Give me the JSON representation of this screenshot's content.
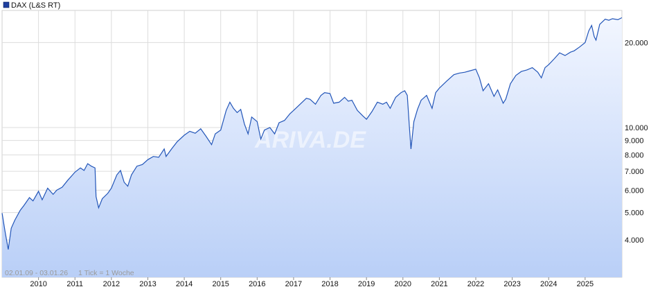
{
  "legend": {
    "label": "DAX (L&S RT)",
    "color": "#1f3f9f"
  },
  "footer": {
    "range": "02.01.09 - 03.01.26",
    "tick": "1 Tick = 1 Woche"
  },
  "watermark": "ARIVA.DE",
  "colors": {
    "line": "#2255b8",
    "fill_top": "#f2f6ff",
    "fill_bottom": "#b9cff7",
    "grid": "#dcdcdc",
    "axis_text": "#111111"
  },
  "chart_data": {
    "type": "area",
    "title": "",
    "xlabel": "",
    "ylabel": "",
    "scale": "log",
    "grid": true,
    "legend": "top-left",
    "xlim": [
      2009.0,
      2026.01
    ],
    "ylim": [
      2950,
      26000
    ],
    "x_ticks": [
      "2010",
      "2011",
      "2012",
      "2013",
      "2014",
      "2015",
      "2016",
      "2017",
      "2018",
      "2019",
      "2020",
      "2021",
      "2022",
      "2023",
      "2024",
      "2025"
    ],
    "y_ticks": [
      {
        "value": 4000,
        "label": "4.000"
      },
      {
        "value": 5000,
        "label": "5.000"
      },
      {
        "value": 6000,
        "label": "6.000"
      },
      {
        "value": 7000,
        "label": "7.000"
      },
      {
        "value": 8000,
        "label": "8.000"
      },
      {
        "value": 9000,
        "label": "9.000"
      },
      {
        "value": 10000,
        "label": "10.000"
      },
      {
        "value": 20000,
        "label": "20.000"
      }
    ],
    "series": [
      {
        "name": "DAX (L&S RT)",
        "points": [
          [
            2009.0,
            4980
          ],
          [
            2009.08,
            4300
          ],
          [
            2009.17,
            3700
          ],
          [
            2009.25,
            4400
          ],
          [
            2009.35,
            4700
          ],
          [
            2009.5,
            5100
          ],
          [
            2009.6,
            5300
          ],
          [
            2009.75,
            5650
          ],
          [
            2009.85,
            5500
          ],
          [
            2010.0,
            5950
          ],
          [
            2010.1,
            5550
          ],
          [
            2010.25,
            6100
          ],
          [
            2010.4,
            5800
          ],
          [
            2010.5,
            6000
          ],
          [
            2010.65,
            6150
          ],
          [
            2010.8,
            6500
          ],
          [
            2011.0,
            6950
          ],
          [
            2011.15,
            7200
          ],
          [
            2011.25,
            7050
          ],
          [
            2011.35,
            7450
          ],
          [
            2011.45,
            7300
          ],
          [
            2011.55,
            7200
          ],
          [
            2011.58,
            5700
          ],
          [
            2011.65,
            5200
          ],
          [
            2011.75,
            5600
          ],
          [
            2011.9,
            5850
          ],
          [
            2012.0,
            6100
          ],
          [
            2012.15,
            6800
          ],
          [
            2012.25,
            7050
          ],
          [
            2012.35,
            6400
          ],
          [
            2012.45,
            6200
          ],
          [
            2012.55,
            6800
          ],
          [
            2012.7,
            7300
          ],
          [
            2012.85,
            7400
          ],
          [
            2013.0,
            7700
          ],
          [
            2013.15,
            7900
          ],
          [
            2013.3,
            7850
          ],
          [
            2013.45,
            8400
          ],
          [
            2013.5,
            7900
          ],
          [
            2013.65,
            8400
          ],
          [
            2013.8,
            8900
          ],
          [
            2014.0,
            9400
          ],
          [
            2014.15,
            9700
          ],
          [
            2014.3,
            9550
          ],
          [
            2014.45,
            9900
          ],
          [
            2014.6,
            9300
          ],
          [
            2014.75,
            8700
          ],
          [
            2014.85,
            9500
          ],
          [
            2015.0,
            9800
          ],
          [
            2015.15,
            11500
          ],
          [
            2015.25,
            12300
          ],
          [
            2015.35,
            11700
          ],
          [
            2015.45,
            11300
          ],
          [
            2015.55,
            11600
          ],
          [
            2015.65,
            10300
          ],
          [
            2015.75,
            9500
          ],
          [
            2015.85,
            10900
          ],
          [
            2016.0,
            10500
          ],
          [
            2016.1,
            9100
          ],
          [
            2016.2,
            9800
          ],
          [
            2016.35,
            10000
          ],
          [
            2016.48,
            9500
          ],
          [
            2016.6,
            10400
          ],
          [
            2016.75,
            10600
          ],
          [
            2016.9,
            11200
          ],
          [
            2017.0,
            11500
          ],
          [
            2017.15,
            12000
          ],
          [
            2017.35,
            12700
          ],
          [
            2017.45,
            12600
          ],
          [
            2017.6,
            12100
          ],
          [
            2017.75,
            13000
          ],
          [
            2017.85,
            13300
          ],
          [
            2018.0,
            13200
          ],
          [
            2018.1,
            12200
          ],
          [
            2018.25,
            12300
          ],
          [
            2018.4,
            12800
          ],
          [
            2018.5,
            12400
          ],
          [
            2018.6,
            12500
          ],
          [
            2018.75,
            11500
          ],
          [
            2018.9,
            11000
          ],
          [
            2019.0,
            10700
          ],
          [
            2019.15,
            11400
          ],
          [
            2019.3,
            12300
          ],
          [
            2019.45,
            12100
          ],
          [
            2019.55,
            12300
          ],
          [
            2019.65,
            11700
          ],
          [
            2019.8,
            12800
          ],
          [
            2019.95,
            13300
          ],
          [
            2020.05,
            13500
          ],
          [
            2020.12,
            13000
          ],
          [
            2020.18,
            10000
          ],
          [
            2020.22,
            8400
          ],
          [
            2020.3,
            10500
          ],
          [
            2020.4,
            11600
          ],
          [
            2020.5,
            12500
          ],
          [
            2020.65,
            13000
          ],
          [
            2020.8,
            11700
          ],
          [
            2020.9,
            13300
          ],
          [
            2021.0,
            13800
          ],
          [
            2021.2,
            14600
          ],
          [
            2021.4,
            15400
          ],
          [
            2021.55,
            15600
          ],
          [
            2021.7,
            15700
          ],
          [
            2021.85,
            15900
          ],
          [
            2022.0,
            16100
          ],
          [
            2022.1,
            15000
          ],
          [
            2022.2,
            13500
          ],
          [
            2022.35,
            14300
          ],
          [
            2022.5,
            12900
          ],
          [
            2022.6,
            13600
          ],
          [
            2022.75,
            12200
          ],
          [
            2022.82,
            12600
          ],
          [
            2022.95,
            14300
          ],
          [
            2023.1,
            15300
          ],
          [
            2023.25,
            15800
          ],
          [
            2023.4,
            16000
          ],
          [
            2023.55,
            16300
          ],
          [
            2023.7,
            15700
          ],
          [
            2023.8,
            15000
          ],
          [
            2023.9,
            16300
          ],
          [
            2024.0,
            16700
          ],
          [
            2024.15,
            17500
          ],
          [
            2024.3,
            18400
          ],
          [
            2024.45,
            18000
          ],
          [
            2024.6,
            18500
          ],
          [
            2024.7,
            18700
          ],
          [
            2024.85,
            19300
          ],
          [
            2025.0,
            20000
          ],
          [
            2025.1,
            22000
          ],
          [
            2025.18,
            23000
          ],
          [
            2025.25,
            21000
          ],
          [
            2025.3,
            20400
          ],
          [
            2025.4,
            23200
          ],
          [
            2025.55,
            24200
          ],
          [
            2025.65,
            24000
          ],
          [
            2025.75,
            24300
          ],
          [
            2025.9,
            24100
          ],
          [
            2026.01,
            24500
          ]
        ]
      }
    ]
  }
}
